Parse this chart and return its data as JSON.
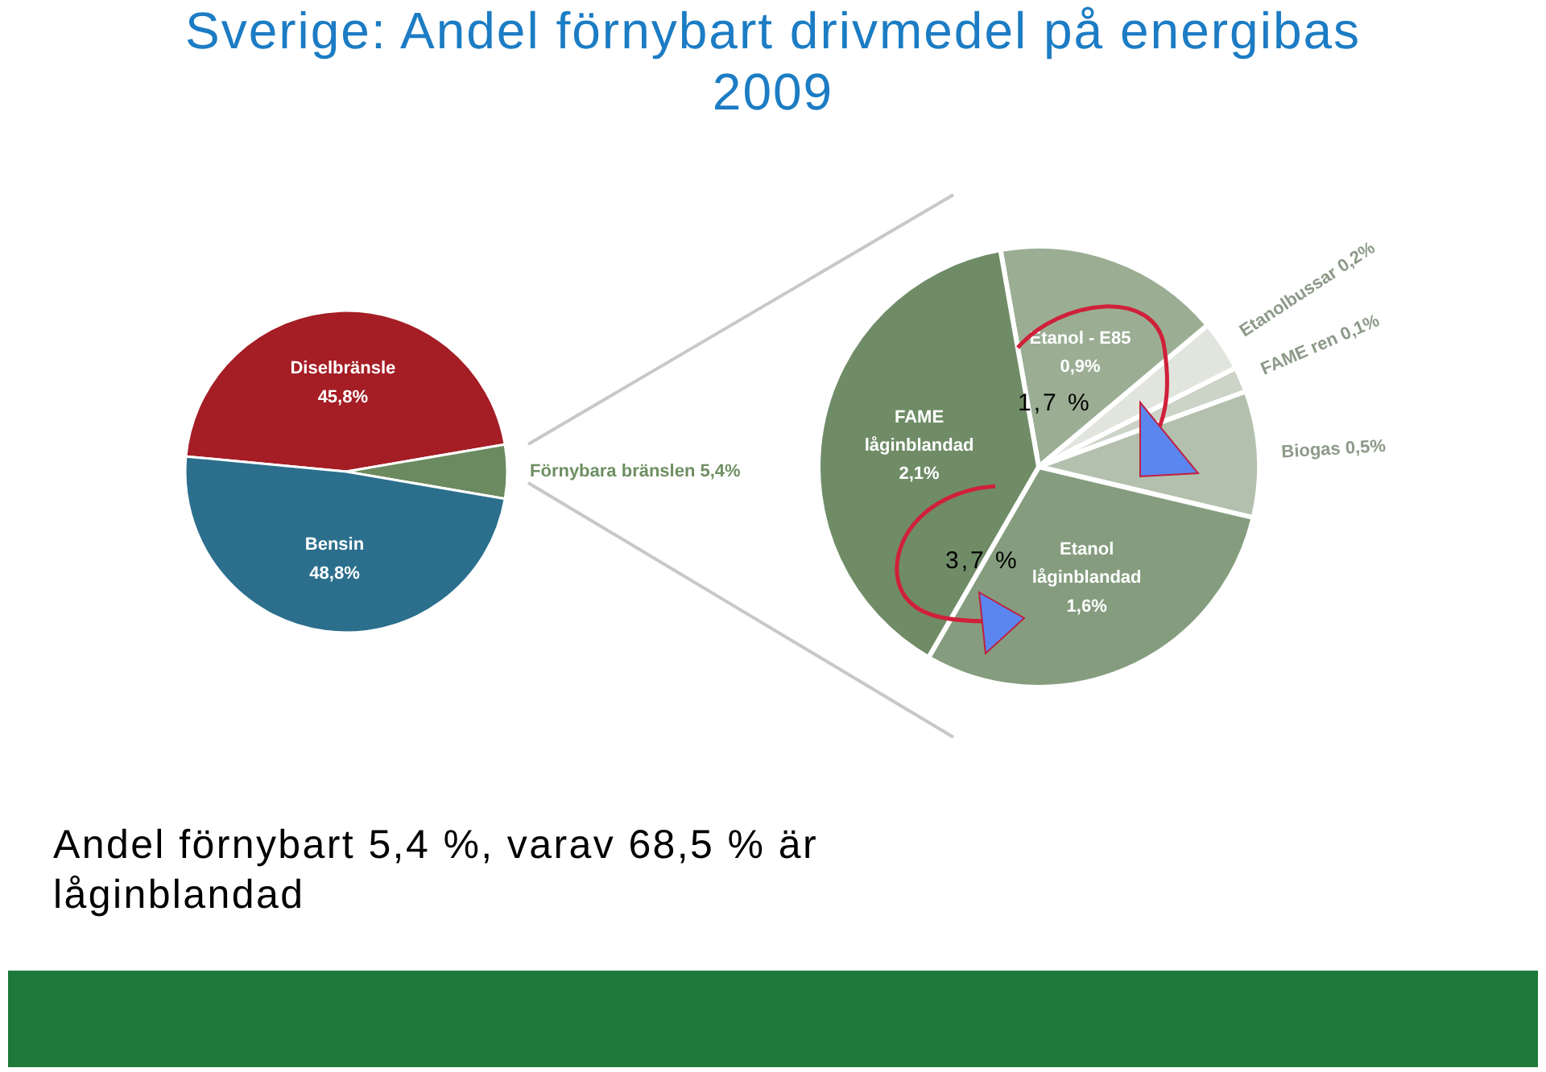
{
  "chart_data": [
    {
      "type": "pie",
      "title": "Sverige: Andel förnybart drivmedel på energibas 2009",
      "categories": [
        "Diselbränsle",
        "Förnybara bränslen",
        "Bensin"
      ],
      "values": [
        45.8,
        5.4,
        48.8
      ],
      "colors": [
        "#a51d25",
        "#6b8a5f",
        "#2b6f8d"
      ],
      "value_labels": [
        "45,8%",
        "5,4%",
        "48,8%"
      ],
      "annotations": [
        "Andel förnybart 5,4 %, varav 68,5 % är låginblandad"
      ]
    },
    {
      "type": "pie",
      "categories": [
        "Etanol - E85",
        "Etanolbussar",
        "FAME ren",
        "Biogas",
        "Etanol låginblandad",
        "FAME låginblandad"
      ],
      "values": [
        0.9,
        0.2,
        0.1,
        0.5,
        1.6,
        2.1
      ],
      "colors": [
        "#9bae94",
        "#e1e5de",
        "#ccd4c8",
        "#b2c0ad",
        "#859d7e",
        "#6f8c67"
      ],
      "value_labels": [
        "0,9%",
        "0,2%",
        "0,1%",
        "0,5%",
        "1,6%",
        "2,1%"
      ],
      "annotations": [
        "1,7 %",
        "3,7 %"
      ]
    }
  ]
}
